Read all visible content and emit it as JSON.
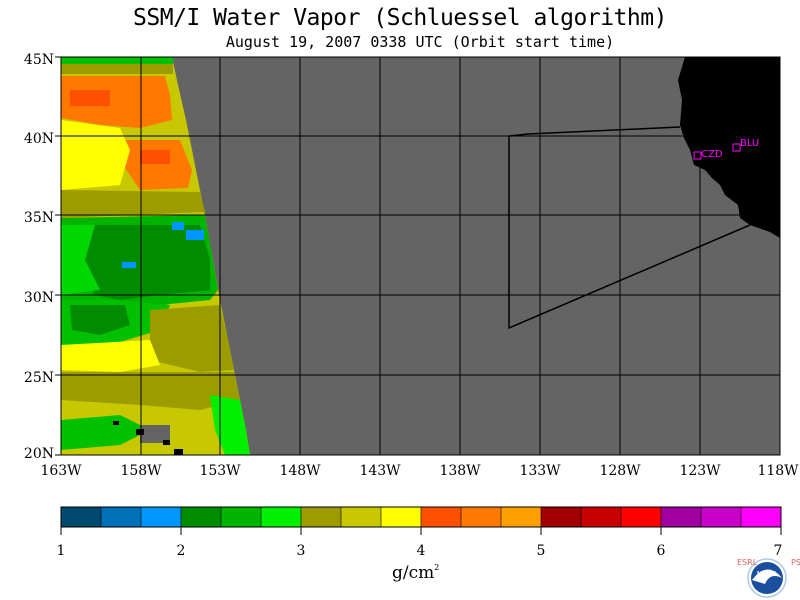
{
  "header": {
    "title": "SSM/I Water Vapor (Schluessel algorithm)",
    "subtitle": "August 19, 2007  0338 UTC  (Orbit start time)"
  },
  "map": {
    "lat_labels": [
      "45N",
      "40N",
      "35N",
      "30N",
      "25N",
      "20N"
    ],
    "lon_labels": [
      "163W",
      "158W",
      "153W",
      "148W",
      "143W",
      "138W",
      "133W",
      "128W",
      "123W",
      "118W"
    ],
    "stations": [
      {
        "name": "CZD",
        "color": "#ff00ff"
      },
      {
        "name": "BLU",
        "color": "#ff00ff"
      }
    ],
    "no_data_color": "#646464",
    "land_color": "#000000"
  },
  "colorbar": {
    "ticks": [
      "1",
      "2",
      "3",
      "4",
      "5",
      "6",
      "7"
    ],
    "unit_base": "g/cm",
    "unit_exp": "2",
    "colors": [
      "#004a70",
      "#0070b8",
      "#0096ff",
      "#008c00",
      "#00b400",
      "#00f000",
      "#9c9c00",
      "#c8c800",
      "#ffff00",
      "#ff5000",
      "#ff7800",
      "#ffa000",
      "#a00000",
      "#c80000",
      "#ff0000",
      "#a000a0",
      "#c800c8",
      "#ff00ff"
    ]
  },
  "logo": {
    "text": "NOAA",
    "left_letters": "ESRL",
    "right_letters": "PSD"
  }
}
